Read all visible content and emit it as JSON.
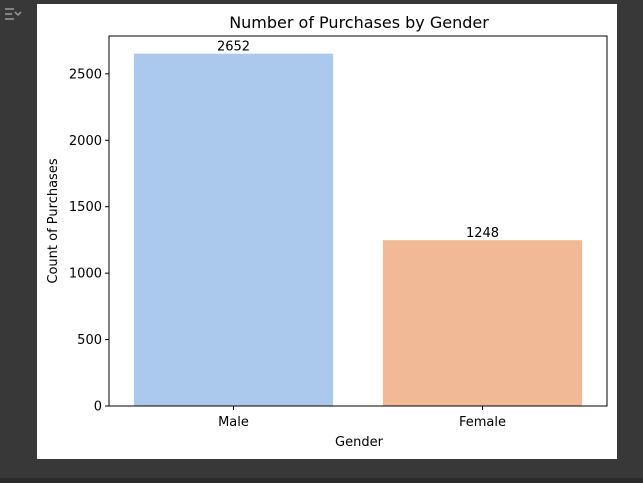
{
  "output_toggle": {
    "icon": "collapse-output-icon"
  },
  "chart_data": {
    "type": "bar",
    "title": "Number of Purchases by Gender",
    "xlabel": "Gender",
    "ylabel": "Count of Purchases",
    "categories": [
      "Male",
      "Female"
    ],
    "values": [
      2652,
      1248
    ],
    "data_labels": [
      "2652",
      "1248"
    ],
    "colors": [
      "#abc9ec",
      "#f1b995"
    ],
    "ylim": [
      0,
      2785
    ],
    "yticks": [
      0,
      500,
      1000,
      1500,
      2000,
      2500
    ],
    "grid": false,
    "legend": "none"
  }
}
